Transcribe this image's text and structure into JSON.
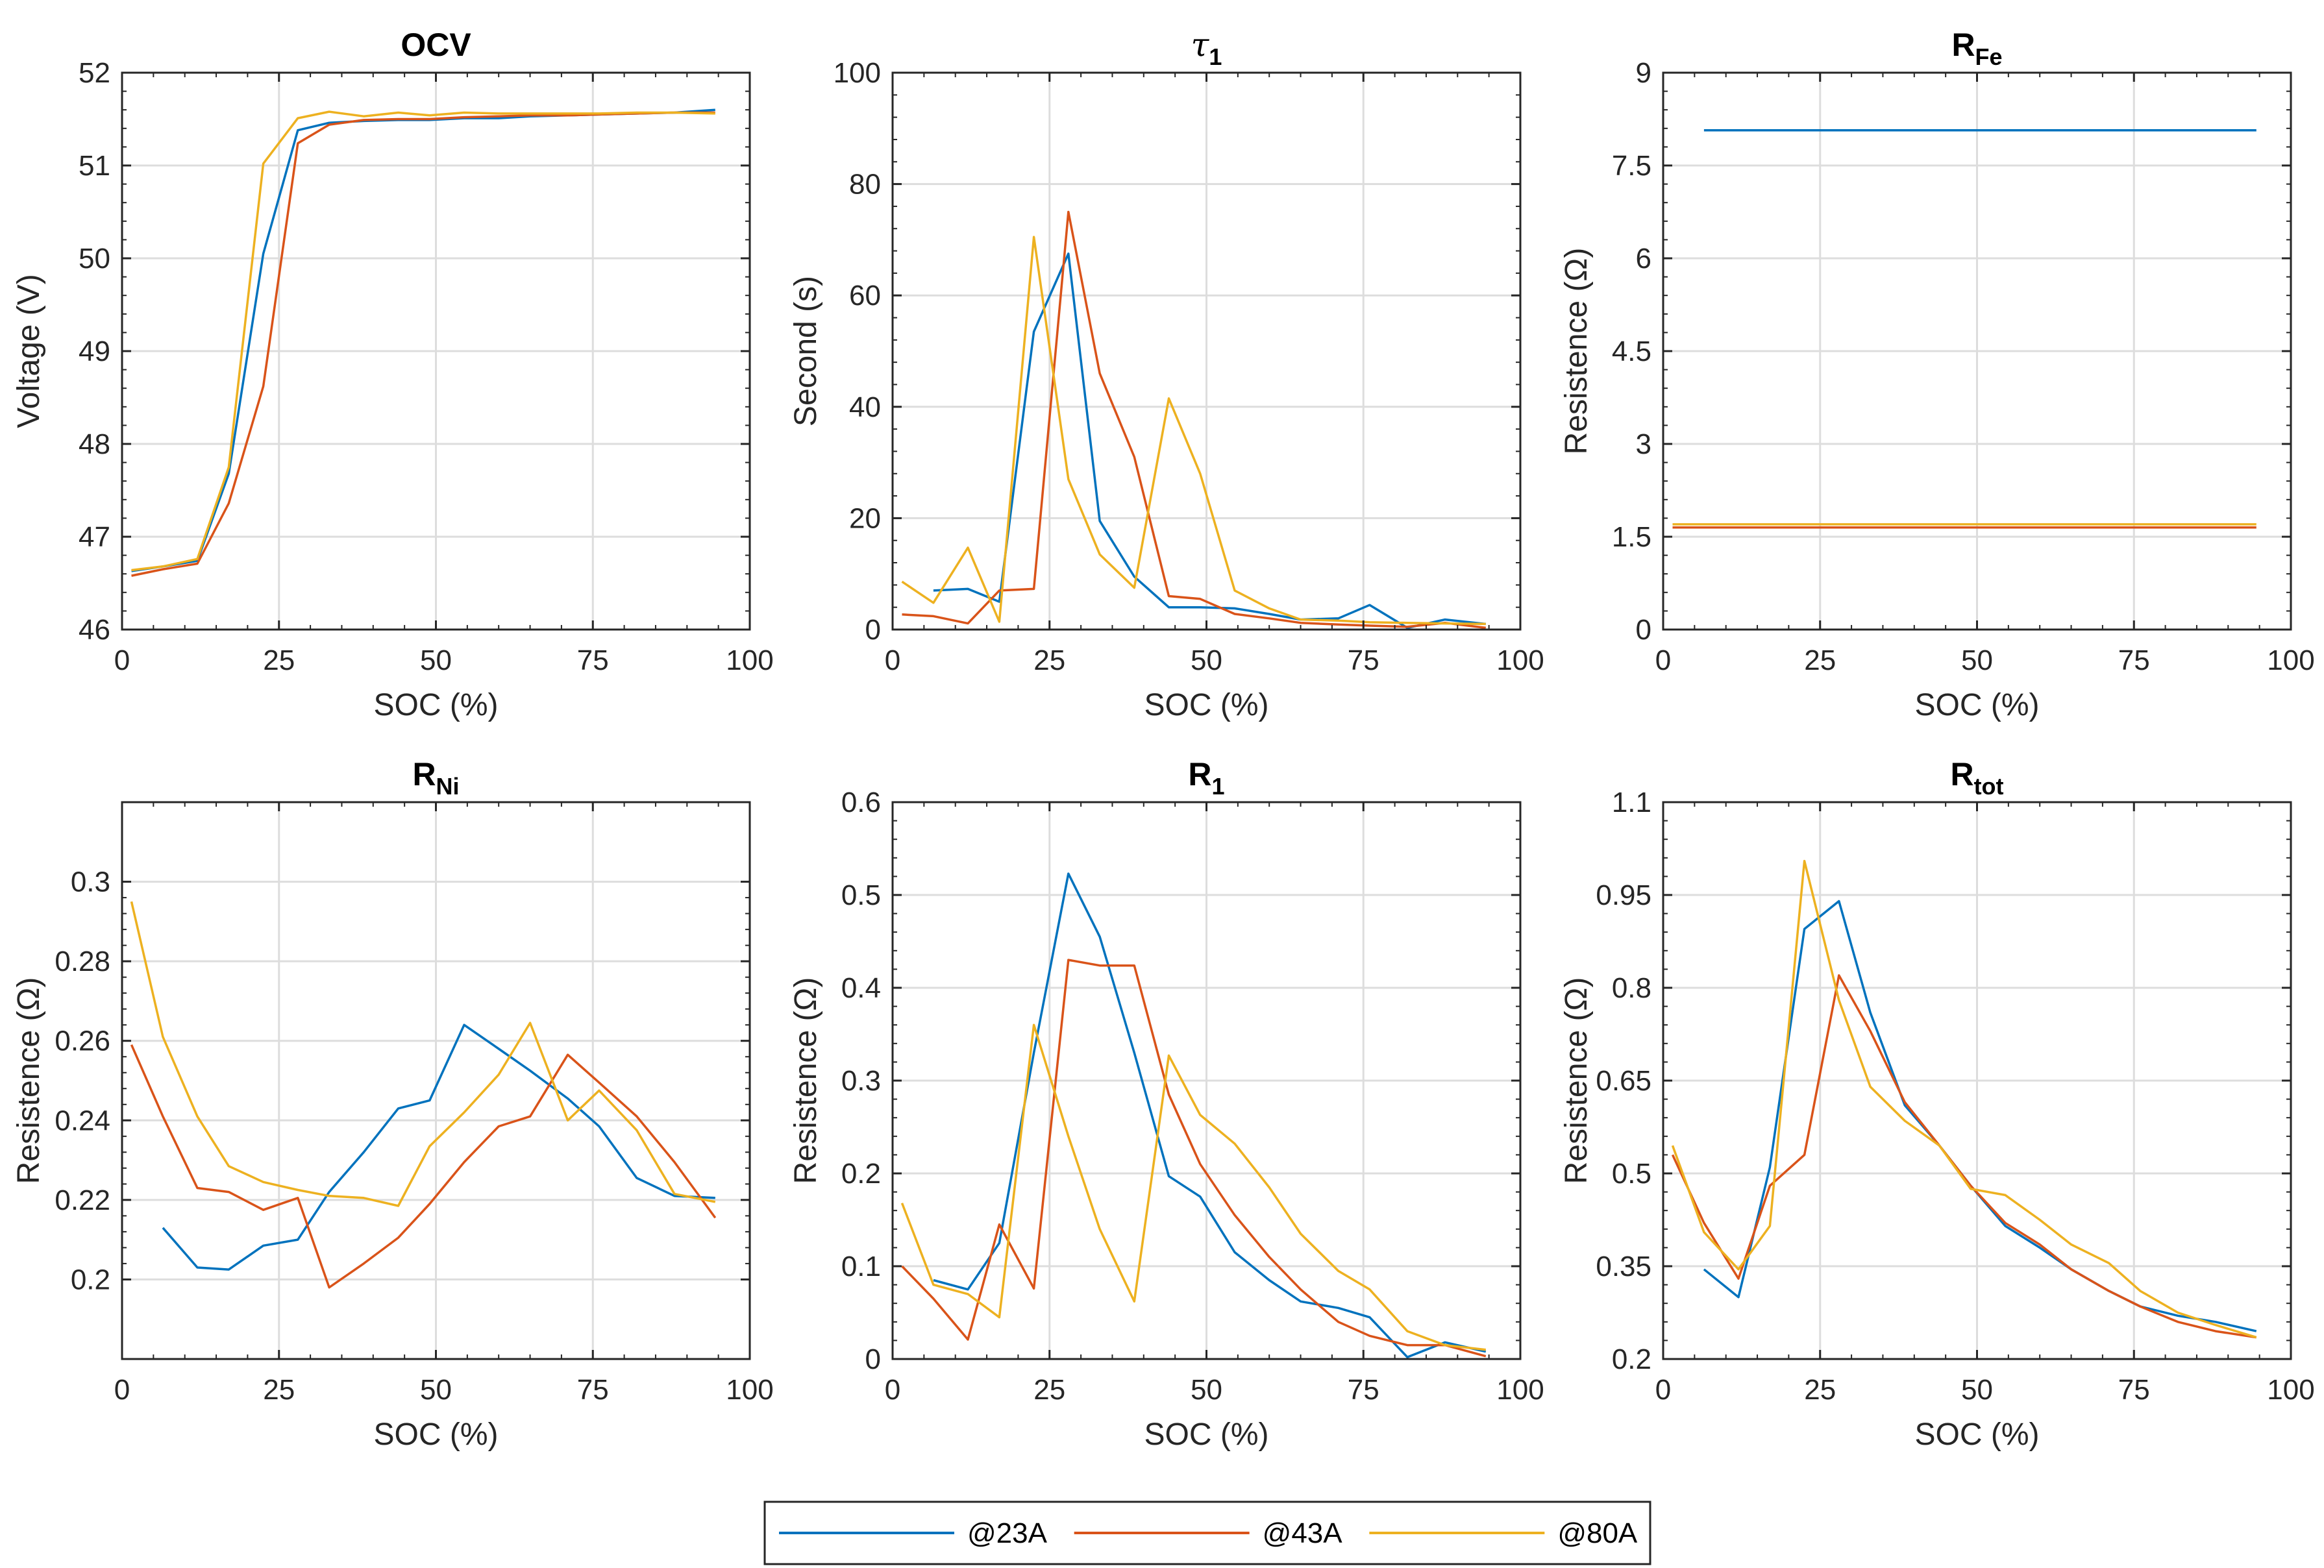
{
  "figure": {
    "legend": [
      {
        "label": "@23A",
        "color": "#0072BD"
      },
      {
        "label": "@43A",
        "color": "#D95319"
      },
      {
        "label": "@80A",
        "color": "#EDB120"
      }
    ],
    "grid_color": "#DDDDDD"
  },
  "chart_data": [
    {
      "id": "ocv",
      "type": "line",
      "title": "OCV",
      "title_main": "OCV",
      "title_sub": "",
      "title_style": "bold",
      "xlabel": "SOC (%)",
      "ylabel": "Voltage (V)",
      "xlim": [
        0,
        100
      ],
      "ylim": [
        46,
        52
      ],
      "xticks": [
        0,
        25,
        50,
        75,
        100
      ],
      "yticks": [
        46,
        47,
        48,
        49,
        50,
        51,
        52
      ],
      "xtick_labels": [
        "0",
        "25",
        "50",
        "75",
        "100"
      ],
      "ytick_labels": [
        "46",
        "47",
        "48",
        "49",
        "50",
        "51",
        "52"
      ],
      "grid": true,
      "series": [
        {
          "name": "@23A",
          "x": [
            1.5,
            6.5,
            12,
            17,
            22.5,
            28,
            33,
            38.5,
            44,
            49,
            54.5,
            60,
            65,
            71,
            76,
            82,
            88,
            94.5
          ],
          "y": [
            46.63,
            46.68,
            46.74,
            47.68,
            50.05,
            51.38,
            51.46,
            51.48,
            51.49,
            51.49,
            51.51,
            51.51,
            51.53,
            51.54,
            51.55,
            51.56,
            51.57,
            51.6
          ]
        },
        {
          "name": "@43A",
          "x": [
            1.5,
            6.5,
            12,
            17,
            22.5,
            28,
            33,
            38.5,
            44,
            49,
            54.5,
            60,
            65,
            71,
            76,
            82,
            88,
            94.5
          ],
          "y": [
            46.58,
            46.65,
            46.71,
            47.36,
            48.62,
            51.24,
            51.44,
            51.49,
            51.5,
            51.5,
            51.52,
            51.53,
            51.54,
            51.54,
            51.55,
            51.56,
            51.57,
            51.57
          ]
        },
        {
          "name": "@80A",
          "x": [
            1.5,
            6.5,
            12,
            17,
            22.5,
            28,
            33,
            38.5,
            44,
            49,
            54.5,
            60,
            65,
            71,
            76,
            82,
            88,
            94.5
          ],
          "y": [
            46.64,
            46.68,
            46.76,
            47.75,
            51.02,
            51.51,
            51.58,
            51.53,
            51.57,
            51.54,
            51.57,
            51.56,
            51.56,
            51.56,
            51.56,
            51.57,
            51.57,
            51.56
          ]
        }
      ]
    },
    {
      "id": "tau1",
      "type": "line",
      "title": "τ1",
      "title_main": "τ",
      "title_sub": "1",
      "title_style": "tau",
      "xlabel": "SOC (%)",
      "ylabel": "Second (s)",
      "xlim": [
        0,
        100
      ],
      "ylim": [
        0,
        100
      ],
      "xticks": [
        0,
        25,
        50,
        75,
        100
      ],
      "yticks": [
        0,
        20,
        40,
        60,
        80,
        100
      ],
      "xtick_labels": [
        "0",
        "25",
        "50",
        "75",
        "100"
      ],
      "ytick_labels": [
        "0",
        "20",
        "40",
        "60",
        "80",
        "100"
      ],
      "grid": true,
      "series": [
        {
          "name": "@23A",
          "x": [
            6.5,
            12,
            17,
            22.5,
            28,
            33,
            38.5,
            44,
            49,
            54.5,
            60,
            65,
            71,
            76,
            82,
            88,
            94.5
          ],
          "y": [
            7,
            7.3,
            5,
            53.5,
            67.5,
            19.5,
            9.5,
            4,
            4,
            3.8,
            2.8,
            1.8,
            2,
            4.4,
            0.3,
            1.8,
            1
          ]
        },
        {
          "name": "@43A",
          "x": [
            1.5,
            6.5,
            12,
            17,
            22.5,
            28,
            33,
            38.5,
            44,
            49,
            54.5,
            60,
            65,
            71,
            76,
            82,
            88,
            94.5
          ],
          "y": [
            2.7,
            2.4,
            1.1,
            7,
            7.3,
            75,
            46,
            31,
            6,
            5.5,
            2.8,
            2,
            1.2,
            0.9,
            0.7,
            0.5,
            1.2,
            0.3
          ]
        },
        {
          "name": "@80A",
          "x": [
            1.5,
            6.5,
            12,
            17,
            22.5,
            28,
            33,
            38.5,
            44,
            49,
            54.5,
            60,
            65,
            71,
            76,
            82,
            88,
            94.5
          ],
          "y": [
            8.6,
            4.8,
            14.7,
            1.4,
            70.5,
            27,
            13.5,
            7.5,
            41.5,
            28,
            7,
            3.8,
            1.8,
            1.6,
            1.3,
            1.2,
            1.1,
            1
          ]
        }
      ]
    },
    {
      "id": "rfe",
      "type": "line",
      "title": "RFe",
      "title_main": "R",
      "title_sub": "Fe",
      "title_style": "sub",
      "xlabel": "SOC (%)",
      "ylabel": "Resistence (Ω)",
      "xlim": [
        0,
        100
      ],
      "ylim": [
        0,
        9
      ],
      "xticks": [
        0,
        25,
        50,
        75,
        100
      ],
      "yticks": [
        0,
        1.5,
        3,
        4.5,
        6,
        7.5,
        9
      ],
      "xtick_labels": [
        "0",
        "25",
        "50",
        "75",
        "100"
      ],
      "ytick_labels": [
        "0",
        "1.5",
        "3",
        "4.5",
        "6",
        "7.5",
        "9"
      ],
      "grid": true,
      "series": [
        {
          "name": "@23A",
          "x": [
            6.5,
            94.5
          ],
          "y": [
            8.07,
            8.07
          ]
        },
        {
          "name": "@43A",
          "x": [
            1.5,
            94.5
          ],
          "y": [
            1.65,
            1.65
          ]
        },
        {
          "name": "@80A",
          "x": [
            1.5,
            94.5
          ],
          "y": [
            1.7,
            1.7
          ]
        }
      ]
    },
    {
      "id": "rni",
      "type": "line",
      "title": "RNi",
      "title_main": "R",
      "title_sub": "Ni",
      "title_style": "sub",
      "xlabel": "SOC (%)",
      "ylabel": "Resistence (Ω)",
      "xlim": [
        0,
        100
      ],
      "ylim": [
        0.18,
        0.32
      ],
      "xticks": [
        0,
        25,
        50,
        75,
        100
      ],
      "yticks": [
        0.2,
        0.22,
        0.24,
        0.26,
        0.28,
        0.3
      ],
      "xtick_labels": [
        "0",
        "25",
        "50",
        "75",
        "100"
      ],
      "ytick_labels": [
        "0.2",
        "0.22",
        "0.24",
        "0.26",
        "0.28",
        "0.3"
      ],
      "grid": true,
      "series": [
        {
          "name": "@23A",
          "x": [
            6.5,
            12,
            17,
            22.5,
            28,
            33,
            38.5,
            44,
            49,
            54.5,
            60,
            65,
            71,
            76,
            82,
            88,
            94.5
          ],
          "y": [
            0.213,
            0.203,
            0.2025,
            0.2085,
            0.21,
            0.222,
            0.232,
            0.243,
            0.245,
            0.264,
            0.258,
            0.2525,
            0.2455,
            0.2385,
            0.2255,
            0.221,
            0.2205
          ]
        },
        {
          "name": "@43A",
          "x": [
            1.5,
            6.5,
            12,
            17,
            22.5,
            28,
            33,
            38.5,
            44,
            49,
            54.5,
            60,
            65,
            71,
            76,
            82,
            88,
            94.5
          ],
          "y": [
            0.259,
            0.241,
            0.223,
            0.222,
            0.2175,
            0.2205,
            0.198,
            0.204,
            0.2105,
            0.219,
            0.2295,
            0.2385,
            0.241,
            0.2565,
            0.2495,
            0.241,
            0.2295,
            0.2155
          ]
        },
        {
          "name": "@80A",
          "x": [
            1.5,
            6.5,
            12,
            17,
            22.5,
            28,
            33,
            38.5,
            44,
            49,
            54.5,
            60,
            65,
            71,
            76,
            82,
            88,
            94.5
          ],
          "y": [
            0.295,
            0.261,
            0.241,
            0.2285,
            0.2245,
            0.2225,
            0.221,
            0.2205,
            0.2185,
            0.2335,
            0.242,
            0.2515,
            0.2645,
            0.24,
            0.2475,
            0.2375,
            0.2215,
            0.2195
          ]
        }
      ]
    },
    {
      "id": "r1",
      "type": "line",
      "title": "R1",
      "title_main": "R",
      "title_sub": "1",
      "title_style": "sub",
      "xlabel": "SOC (%)",
      "ylabel": "Resistence (Ω)",
      "xlim": [
        0,
        100
      ],
      "ylim": [
        0,
        0.6
      ],
      "xticks": [
        0,
        25,
        50,
        75,
        100
      ],
      "yticks": [
        0,
        0.1,
        0.2,
        0.3,
        0.4,
        0.5,
        0.6
      ],
      "xtick_labels": [
        "0",
        "25",
        "50",
        "75",
        "100"
      ],
      "ytick_labels": [
        "0",
        "0.1",
        "0.2",
        "0.3",
        "0.4",
        "0.5",
        "0.6"
      ],
      "grid": true,
      "series": [
        {
          "name": "@23A",
          "x": [
            6.5,
            12,
            17,
            22.5,
            28,
            33,
            38.5,
            44,
            49,
            54.5,
            60,
            65,
            71,
            76,
            82,
            88,
            94.5
          ],
          "y": [
            0.085,
            0.075,
            0.125,
            0.33,
            0.523,
            0.455,
            0.33,
            0.197,
            0.175,
            0.115,
            0.085,
            0.062,
            0.055,
            0.045,
            0.002,
            0.018,
            0.008
          ]
        },
        {
          "name": "@43A",
          "x": [
            1.5,
            6.5,
            12,
            17,
            22.5,
            28,
            33,
            38.5,
            44,
            49,
            54.5,
            60,
            65,
            71,
            76,
            82,
            88,
            94.5
          ],
          "y": [
            0.1,
            0.065,
            0.021,
            0.145,
            0.076,
            0.43,
            0.424,
            0.424,
            0.285,
            0.21,
            0.155,
            0.11,
            0.075,
            0.04,
            0.025,
            0.015,
            0.015,
            0.003
          ]
        },
        {
          "name": "@80A",
          "x": [
            1.5,
            6.5,
            12,
            17,
            22.5,
            28,
            33,
            38.5,
            44,
            49,
            54.5,
            60,
            65,
            71,
            76,
            82,
            88,
            94.5
          ],
          "y": [
            0.168,
            0.08,
            0.07,
            0.045,
            0.36,
            0.24,
            0.14,
            0.062,
            0.327,
            0.263,
            0.232,
            0.185,
            0.135,
            0.095,
            0.075,
            0.03,
            0.015,
            0.01
          ]
        }
      ]
    },
    {
      "id": "rtot",
      "type": "line",
      "title": "Rtot",
      "title_main": "R",
      "title_sub": "tot",
      "title_style": "sub",
      "xlabel": "SOC (%)",
      "ylabel": "Resistence (Ω)",
      "xlim": [
        0,
        100
      ],
      "ylim": [
        0.2,
        1.1
      ],
      "xticks": [
        0,
        25,
        50,
        75,
        100
      ],
      "yticks": [
        0.2,
        0.35,
        0.5,
        0.65,
        0.8,
        0.95,
        1.1
      ],
      "xtick_labels": [
        "0",
        "25",
        "50",
        "75",
        "100"
      ],
      "ytick_labels": [
        "0.2",
        "0.35",
        "0.5",
        "0.65",
        "0.8",
        "0.95",
        "1.1"
      ],
      "grid": true,
      "series": [
        {
          "name": "@23A",
          "x": [
            6.5,
            12,
            17,
            22.5,
            28,
            33,
            38.5,
            44,
            49,
            54.5,
            60,
            65,
            71,
            76,
            82,
            88,
            94.5
          ],
          "y": [
            0.345,
            0.3,
            0.51,
            0.895,
            0.94,
            0.76,
            0.61,
            0.545,
            0.48,
            0.415,
            0.38,
            0.345,
            0.31,
            0.285,
            0.27,
            0.26,
            0.245
          ]
        },
        {
          "name": "@43A",
          "x": [
            1.5,
            6.5,
            12,
            17,
            22.5,
            28,
            33,
            38.5,
            44,
            49,
            54.5,
            60,
            65,
            71,
            76,
            82,
            88,
            94.5
          ],
          "y": [
            0.53,
            0.42,
            0.33,
            0.48,
            0.53,
            0.82,
            0.73,
            0.615,
            0.545,
            0.48,
            0.42,
            0.385,
            0.345,
            0.31,
            0.285,
            0.26,
            0.245,
            0.235
          ]
        },
        {
          "name": "@80A",
          "x": [
            1.5,
            6.5,
            12,
            17,
            22.5,
            28,
            33,
            38.5,
            44,
            49,
            54.5,
            60,
            65,
            71,
            76,
            82,
            88,
            94.5
          ],
          "y": [
            0.545,
            0.405,
            0.345,
            0.415,
            1.005,
            0.78,
            0.64,
            0.585,
            0.545,
            0.475,
            0.465,
            0.425,
            0.385,
            0.355,
            0.31,
            0.275,
            0.255,
            0.235
          ]
        }
      ]
    }
  ]
}
